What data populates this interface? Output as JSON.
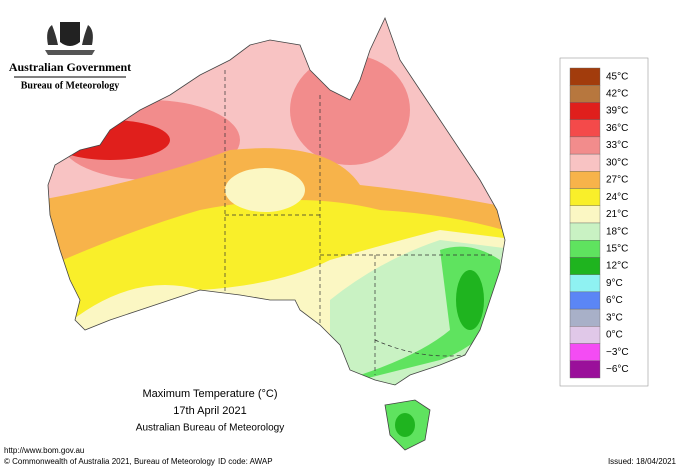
{
  "header": {
    "title": "Australian Government",
    "subtitle": "Bureau of Meteorology"
  },
  "caption": {
    "title": "Maximum Temperature (°C)",
    "date": "17th April 2021",
    "source": "Australian Bureau of Meteorology"
  },
  "footer": {
    "url": "http://www.bom.gov.au",
    "copyright": "© Commonwealth of Australia 2021, Bureau of Meteorology",
    "id_code": "ID code: AWAP",
    "issued": "Issued: 18/04/2021"
  },
  "legend": [
    {
      "value": 45,
      "label": "45°C",
      "color": "#a23c0c"
    },
    {
      "value": 42,
      "label": "42°C",
      "color": "#b7773e"
    },
    {
      "value": 39,
      "label": "39°C",
      "color": "#e01f1c"
    },
    {
      "value": 36,
      "label": "36°C",
      "color": "#f44a4a"
    },
    {
      "value": 33,
      "label": "33°C",
      "color": "#f28c8c"
    },
    {
      "value": 30,
      "label": "30°C",
      "color": "#f8c3c3"
    },
    {
      "value": 27,
      "label": "27°C",
      "color": "#f7b34a"
    },
    {
      "value": 24,
      "label": "24°C",
      "color": "#f9ef2a"
    },
    {
      "value": 21,
      "label": "21°C",
      "color": "#fbf7c3"
    },
    {
      "value": 18,
      "label": "18°C",
      "color": "#c9f2c3"
    },
    {
      "value": 15,
      "label": "15°C",
      "color": "#5fe35f"
    },
    {
      "value": 12,
      "label": "12°C",
      "color": "#1fb41f"
    },
    {
      "value": 9,
      "label": "9°C",
      "color": "#8ff2f2"
    },
    {
      "value": 6,
      "label": "6°C",
      "color": "#5b86f5"
    },
    {
      "value": 3,
      "label": "3°C",
      "color": "#a8b0c8"
    },
    {
      "value": 0,
      "label": "0°C",
      "color": "#e0c8e8"
    },
    {
      "value": -3,
      "label": "−3°C",
      "color": "#f44cf4"
    },
    {
      "value": -6,
      "label": "−6°C",
      "color": "#9a109a"
    }
  ]
}
